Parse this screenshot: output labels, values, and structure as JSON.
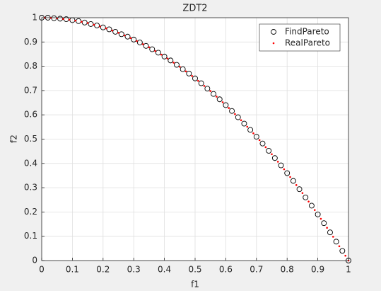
{
  "chart_data": {
    "type": "scatter",
    "title": "ZDT2",
    "x_label": "f1",
    "y_label": "f2",
    "xlim": [
      0,
      1
    ],
    "ylim": [
      0,
      1
    ],
    "xticks": [
      0,
      0.1,
      0.2,
      0.3,
      0.4,
      0.5,
      0.6,
      0.7,
      0.8,
      0.9,
      1
    ],
    "yticks": [
      0,
      0.1,
      0.2,
      0.3,
      0.4,
      0.5,
      0.6,
      0.7,
      0.8,
      0.9,
      1
    ],
    "grid": true,
    "legend": "northeast",
    "series": [
      {
        "name": "FindPareto",
        "color": "#000000",
        "marker": "circle",
        "x": [
          0,
          0.02,
          0.04,
          0.06,
          0.08,
          0.1,
          0.12,
          0.14,
          0.16,
          0.18,
          0.2,
          0.22,
          0.24,
          0.26,
          0.28,
          0.3,
          0.32,
          0.34,
          0.36,
          0.38,
          0.4,
          0.42,
          0.44,
          0.46,
          0.48,
          0.5,
          0.52,
          0.54,
          0.56,
          0.58,
          0.6,
          0.62,
          0.64,
          0.66,
          0.68,
          0.7,
          0.72,
          0.74,
          0.76,
          0.78,
          0.8,
          0.82,
          0.84,
          0.86,
          0.88,
          0.9,
          0.92,
          0.94,
          0.96,
          0.98,
          1
        ],
        "y": [
          1,
          1,
          0.998,
          0.996,
          0.994,
          0.99,
          0.986,
          0.98,
          0.974,
          0.968,
          0.96,
          0.952,
          0.942,
          0.932,
          0.922,
          0.91,
          0.898,
          0.884,
          0.87,
          0.856,
          0.84,
          0.824,
          0.806,
          0.788,
          0.77,
          0.75,
          0.73,
          0.708,
          0.686,
          0.664,
          0.64,
          0.616,
          0.59,
          0.564,
          0.538,
          0.51,
          0.482,
          0.452,
          0.422,
          0.392,
          0.36,
          0.328,
          0.294,
          0.26,
          0.226,
          0.19,
          0.154,
          0.116,
          0.078,
          0.04,
          0
        ]
      },
      {
        "name": "RealPareto",
        "color": "#ff0000",
        "marker": "dot",
        "x": [
          0.01,
          0.03,
          0.05,
          0.07,
          0.09,
          0.11,
          0.13,
          0.15,
          0.17,
          0.19,
          0.21,
          0.23,
          0.25,
          0.27,
          0.29,
          0.31,
          0.33,
          0.35,
          0.37,
          0.39,
          0.41,
          0.43,
          0.45,
          0.47,
          0.49,
          0.51,
          0.53,
          0.55,
          0.57,
          0.59,
          0.61,
          0.63,
          0.65,
          0.67,
          0.69,
          0.71,
          0.73,
          0.75,
          0.77,
          0.79,
          0.81,
          0.83,
          0.85,
          0.87,
          0.89,
          0.91,
          0.93,
          0.95,
          0.97,
          0.99,
          1
        ],
        "y": [
          1,
          0.999,
          0.998,
          0.995,
          0.992,
          0.988,
          0.983,
          0.978,
          0.971,
          0.964,
          0.956,
          0.947,
          0.938,
          0.927,
          0.916,
          0.904,
          0.891,
          0.878,
          0.863,
          0.848,
          0.832,
          0.815,
          0.798,
          0.779,
          0.76,
          0.74,
          0.719,
          0.698,
          0.675,
          0.652,
          0.628,
          0.603,
          0.578,
          0.551,
          0.524,
          0.496,
          0.467,
          0.438,
          0.407,
          0.376,
          0.344,
          0.311,
          0.278,
          0.243,
          0.208,
          0.172,
          0.135,
          0.098,
          0.059,
          0.02,
          0
        ]
      }
    ]
  }
}
